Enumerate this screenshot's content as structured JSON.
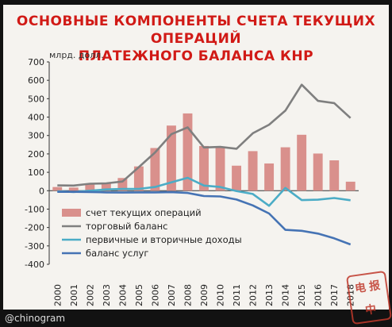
{
  "title_line1": "ОСНОВНЫЕ КОМПОНЕНТЫ СЧЕТА ТЕКУЩИХ ОПЕРАЦИЙ",
  "title_line2": "ПЛАТЕЖНОГО БАЛАНСА КНР",
  "watermark": "@chinogram",
  "stamp_text": "电报中",
  "colors": {
    "bars": "#d9908c",
    "trade": "#7f7f7f",
    "income": "#4bacc6",
    "services": "#4573b4",
    "title": "#d11a16"
  },
  "chart_data": {
    "type": "bar+line",
    "ylabel": "млрд. долл.",
    "ylim": [
      -400,
      700
    ],
    "yticks": [
      -400,
      -300,
      -200,
      -100,
      0,
      100,
      200,
      300,
      400,
      500,
      600,
      700
    ],
    "categories": [
      "2000",
      "2001",
      "2002",
      "2003",
      "2004",
      "2005",
      "2006",
      "2007",
      "2008",
      "2009",
      "2010",
      "2011",
      "2012",
      "2013",
      "2014",
      "2015",
      "2016",
      "2017",
      "2018"
    ],
    "grid": false,
    "legend_position": "lower-left",
    "series": [
      {
        "name": "счет текущих операций",
        "kind": "bar",
        "values": [
          20,
          17,
          35,
          43,
          69,
          132,
          232,
          354,
          420,
          243,
          238,
          136,
          215,
          148,
          236,
          304,
          202,
          165,
          49
        ]
      },
      {
        "name": "торговый баланс",
        "kind": "line",
        "values": [
          29,
          28,
          38,
          40,
          50,
          128,
          208,
          307,
          344,
          235,
          238,
          228,
          312,
          359,
          435,
          576,
          488,
          476,
          395
        ]
      },
      {
        "name": "первичные и вторичные доходы",
        "kind": "line",
        "values": [
          -3,
          -7,
          0,
          7,
          10,
          10,
          20,
          45,
          70,
          28,
          20,
          -2,
          -18,
          -82,
          15,
          -51,
          -49,
          -40,
          -52
        ]
      },
      {
        "name": "баланс услуг",
        "kind": "line",
        "values": [
          -6,
          -6,
          -7,
          -9,
          -10,
          -9,
          -9,
          -8,
          -12,
          -29,
          -31,
          -48,
          -80,
          -124,
          -213,
          -218,
          -233,
          -259,
          -292
        ]
      }
    ]
  }
}
